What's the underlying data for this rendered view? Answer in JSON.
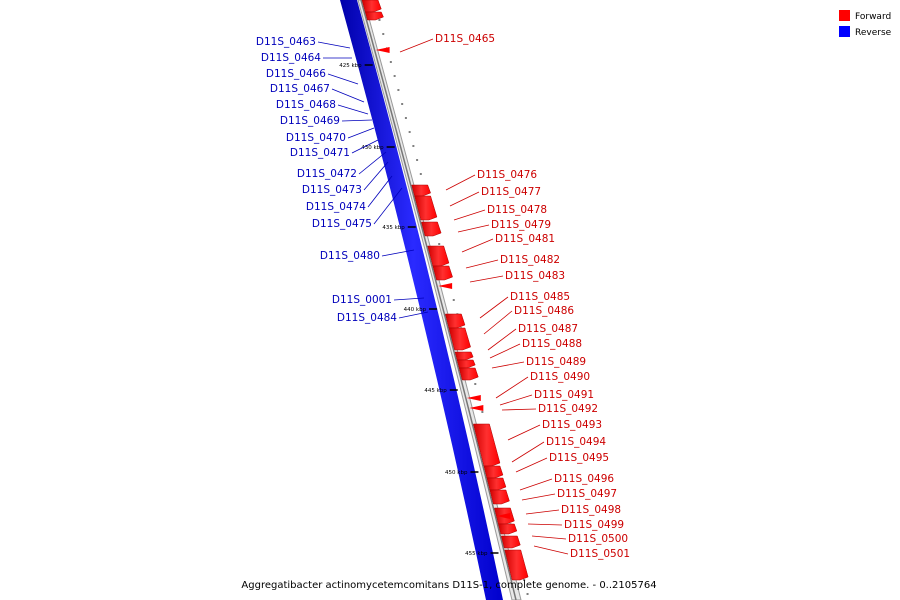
{
  "caption": "Aggregatibacter actinomycetemcomitans D11S-1, complete genome. - 0..2105764",
  "legend": {
    "position": "top-right",
    "items": [
      {
        "label": "Forward",
        "color": "#ff0000"
      },
      {
        "label": "Reverse",
        "color": "#0000ff"
      }
    ]
  },
  "colors": {
    "forward": "#ff0000",
    "reverse": "#0000ff",
    "forward_text": "#cc0000",
    "reverse_text": "#0000bb",
    "backbone": "#9a9a9a"
  },
  "scale_ticks": [
    "425 kbp",
    "430 kbp",
    "435 kbp",
    "440 kbp",
    "445 kbp",
    "450 kbp",
    "455 kbp"
  ],
  "reverse_genes": [
    "D11S_0463",
    "D11S_0464",
    "D11S_0466",
    "D11S_0467",
    "D11S_0468",
    "D11S_0469",
    "D11S_0470",
    "D11S_0471",
    "D11S_0472",
    "D11S_0473",
    "D11S_0474",
    "D11S_0475",
    "D11S_0480",
    "D11S_0001",
    "D11S_0484"
  ],
  "forward_genes": [
    "D11S_0465",
    "D11S_0476",
    "D11S_0477",
    "D11S_0478",
    "D11S_0479",
    "D11S_0481",
    "D11S_0482",
    "D11S_0483",
    "D11S_0485",
    "D11S_0486",
    "D11S_0487",
    "D11S_0488",
    "D11S_0489",
    "D11S_0490",
    "D11S_0491",
    "D11S_0492",
    "D11S_0493",
    "D11S_0494",
    "D11S_0495",
    "D11S_0496",
    "D11S_0497",
    "D11S_0498",
    "D11S_0499",
    "D11S_0500",
    "D11S_0501"
  ]
}
